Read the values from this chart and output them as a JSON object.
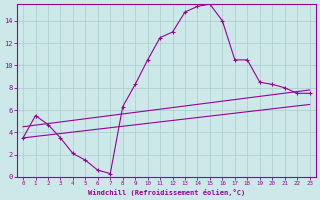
{
  "bg_color": "#cde8e8",
  "line_color": "#990099",
  "grid_color": "#aacccc",
  "xlabel": "Windchill (Refroidissement éolien,°C)",
  "xlim": [
    -0.5,
    23.5
  ],
  "ylim": [
    0,
    15.5
  ],
  "yticks": [
    0,
    2,
    4,
    6,
    8,
    10,
    12,
    14
  ],
  "xticks": [
    0,
    1,
    2,
    3,
    4,
    5,
    6,
    7,
    8,
    9,
    10,
    11,
    12,
    13,
    14,
    15,
    16,
    17,
    18,
    19,
    20,
    21,
    22,
    23
  ],
  "curve1_x": [
    0,
    1,
    2,
    3,
    4,
    5,
    6,
    7,
    8,
    9,
    10,
    11,
    12,
    13,
    14,
    15,
    16,
    17,
    18,
    19,
    20,
    21,
    22,
    23
  ],
  "curve1_y": [
    3.5,
    5.5,
    4.7,
    3.5,
    2.1,
    1.5,
    0.6,
    0.3,
    6.3,
    8.3,
    10.5,
    12.5,
    13.0,
    14.8,
    15.3,
    15.5,
    14.0,
    10.5,
    10.5,
    8.5,
    8.3,
    8.0,
    7.5,
    7.5
  ],
  "line2_x": [
    0,
    23
  ],
  "line2_y": [
    4.5,
    7.8
  ],
  "line3_x": [
    0,
    23
  ],
  "line3_y": [
    3.5,
    6.5
  ]
}
